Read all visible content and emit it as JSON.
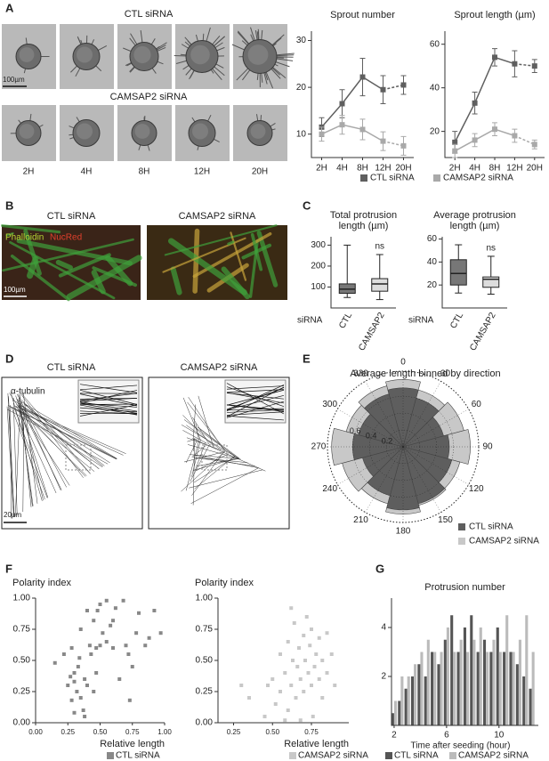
{
  "panel_labels": [
    "A",
    "B",
    "C",
    "D",
    "E",
    "F",
    "G"
  ],
  "panel_a": {
    "row_titles": [
      "CTL siRNA",
      "CAMSAP2 siRNA"
    ],
    "time_labels": [
      "2H",
      "4H",
      "8H",
      "12H",
      "20H"
    ],
    "scale_bar": "100µm"
  },
  "panel_b": {
    "titles": [
      "CTL siRNA",
      "CAMSAP2 siRNA"
    ],
    "stain_labels": [
      "Phalloidin",
      "NucRed"
    ],
    "scale_bar": "100µm"
  },
  "panel_d": {
    "titles": [
      "CTL siRNA",
      "CAMSAP2 siRNA"
    ],
    "stain_label": "α-tubulin",
    "scale_bar": "20µm"
  },
  "chart_data": [
    {
      "type": "line",
      "title": "Sprout number",
      "categories": [
        "2H",
        "4H",
        "8H",
        "12H",
        "20H"
      ],
      "ylim": [
        5,
        32
      ],
      "yticks": [
        10,
        20,
        30
      ],
      "dash_last_segment": true,
      "series": [
        {
          "name": "CTL siRNA",
          "color": "#5f5f5f",
          "values": [
            11.5,
            16.5,
            22.2,
            19.5,
            20.5
          ],
          "errors": [
            2,
            3,
            4,
            3,
            2
          ]
        },
        {
          "name": "CAMSAP2 siRNA",
          "color": "#a9a9a9",
          "values": [
            10,
            12,
            11,
            8.5,
            7.5
          ],
          "errors": [
            1.5,
            2,
            2.2,
            2,
            2
          ]
        }
      ]
    },
    {
      "type": "line",
      "title": "Sprout length (µm)",
      "categories": [
        "2H",
        "4H",
        "8H",
        "12H",
        "20H"
      ],
      "ylim": [
        8,
        66
      ],
      "yticks": [
        20,
        40,
        60
      ],
      "dash_last_segment": true,
      "series": [
        {
          "color": "#5f5f5f",
          "values": [
            15,
            33,
            54,
            51,
            50
          ],
          "errors": [
            5,
            5,
            4,
            6,
            3
          ]
        },
        {
          "color": "#a9a9a9",
          "values": [
            11,
            16,
            21,
            18,
            14
          ],
          "errors": [
            3,
            3,
            3,
            3,
            2
          ]
        }
      ]
    },
    {
      "type": "box",
      "title": [
        "Total protrusion",
        "length (µm)"
      ],
      "x_label": "siRNA",
      "categories": [
        "CTL",
        "CAMSAP2"
      ],
      "colors": [
        "#777777",
        "#dddddd"
      ],
      "min": [
        50,
        40
      ],
      "q1": [
        70,
        80
      ],
      "median": [
        90,
        115
      ],
      "q3": [
        115,
        140
      ],
      "max": [
        300,
        255
      ],
      "annotation": "ns",
      "ylim": [
        0,
        340
      ],
      "yticks": [
        100,
        200,
        300
      ]
    },
    {
      "type": "box",
      "title": [
        "Average protrusion",
        "length (µm)"
      ],
      "x_label": "siRNA",
      "categories": [
        "CTL",
        "CAMSAP2"
      ],
      "colors": [
        "#777777",
        "#dddddd"
      ],
      "min": [
        13,
        12
      ],
      "q1": [
        20,
        18
      ],
      "median": [
        30,
        25
      ],
      "q3": [
        42,
        27
      ],
      "max": [
        55,
        45
      ],
      "annotation": "ns",
      "ylim": [
        0,
        62
      ],
      "yticks": [
        20,
        40,
        60
      ]
    },
    {
      "type": "polar_bar",
      "title": "Average length binned by direction",
      "angles": [
        0,
        30,
        60,
        90,
        120,
        150,
        180,
        210,
        240,
        270,
        300,
        330
      ],
      "rlim": [
        0,
        0.9
      ],
      "rticks": [
        0.2,
        0.4,
        0.6
      ],
      "series": [
        {
          "name": "CTL siRNA",
          "color": "#5e5e5e",
          "values": [
            0.7,
            0.6,
            0.5,
            0.55,
            0.6,
            0.7,
            0.75,
            0.6,
            0.5,
            0.6,
            0.55,
            0.65
          ]
        },
        {
          "name": "CAMSAP2 siRNA",
          "color": "#c8c8c8",
          "values": [
            0.8,
            0.7,
            0.75,
            0.8,
            0.7,
            0.72,
            0.8,
            0.7,
            0.75,
            0.85,
            0.7,
            0.75
          ]
        }
      ]
    },
    {
      "type": "scatter",
      "title": "Polarity index",
      "x_label": "Relative length",
      "xlim": [
        0,
        1
      ],
      "ylim": [
        0,
        1
      ],
      "xticks": [
        {
          "value": 0,
          "label": "0.00"
        },
        {
          "value": 0.25,
          "label": "0.25"
        },
        {
          "value": 0.5,
          "label": "0.50"
        },
        {
          "value": 0.75,
          "label": "0.75"
        },
        {
          "value": 1,
          "label": "1.00"
        }
      ],
      "yticks": [
        {
          "value": 0,
          "label": "0.00"
        },
        {
          "value": 0.25,
          "label": "0.25"
        },
        {
          "value": 0.5,
          "label": "0.50"
        },
        {
          "value": 0.75,
          "label": "0.75"
        },
        {
          "value": 1,
          "label": "1.00"
        }
      ],
      "series": [
        {
          "name": "CTL siRNA",
          "color": "#888888",
          "x": [
            0.15,
            0.22,
            0.25,
            0.27,
            0.28,
            0.28,
            0.3,
            0.3,
            0.32,
            0.33,
            0.34,
            0.35,
            0.35,
            0.37,
            0.38,
            0.38,
            0.4,
            0.4,
            0.42,
            0.43,
            0.45,
            0.45,
            0.47,
            0.48,
            0.5,
            0.5,
            0.52,
            0.55,
            0.55,
            0.58,
            0.6,
            0.62,
            0.65,
            0.68,
            0.7,
            0.72,
            0.73,
            0.75,
            0.78,
            0.8,
            0.85,
            0.88,
            0.92,
            0.97,
            0.47,
            0.3,
            0.6
          ],
          "values": [
            0.48,
            0.55,
            0.3,
            0.37,
            0.6,
            0.18,
            0.4,
            0.08,
            0.25,
            0.45,
            0.52,
            0.2,
            0.75,
            0.1,
            0.35,
            0.05,
            0.3,
            0.9,
            0.62,
            0.55,
            0.25,
            0.82,
            0.6,
            0.9,
            0.62,
            0.95,
            0.72,
            0.98,
            0.65,
            0.78,
            0.6,
            0.92,
            0.35,
            0.98,
            0.62,
            0.55,
            0.18,
            0.45,
            0.72,
            0.88,
            0.62,
            0.68,
            0.9,
            0.72,
            0.4,
            0.33,
            0.82
          ]
        }
      ]
    },
    {
      "type": "scatter",
      "title": "Polarity index",
      "x_label": "Relative length",
      "xlim": [
        0.15,
        0.99
      ],
      "ylim": [
        0,
        1
      ],
      "xticks": [
        {
          "value": 0.25,
          "label": "0.25"
        },
        {
          "value": 0.5,
          "label": "0.50"
        },
        {
          "value": 0.75,
          "label": "0.75"
        }
      ],
      "yticks": [
        {
          "value": 0,
          "label": "0.00"
        },
        {
          "value": 0.25,
          "label": "0.25"
        },
        {
          "value": 0.5,
          "label": "0.50"
        },
        {
          "value": 0.75,
          "label": "0.75"
        },
        {
          "value": 1,
          "label": "1.00"
        }
      ],
      "series": [
        {
          "name": "CAMSAP2 siRNA",
          "color": "#c8c8c8",
          "x": [
            0.3,
            0.35,
            0.45,
            0.5,
            0.52,
            0.55,
            0.55,
            0.58,
            0.6,
            0.6,
            0.62,
            0.63,
            0.64,
            0.65,
            0.66,
            0.67,
            0.68,
            0.68,
            0.7,
            0.7,
            0.71,
            0.72,
            0.73,
            0.74,
            0.75,
            0.75,
            0.76,
            0.77,
            0.78,
            0.8,
            0.8,
            0.82,
            0.82,
            0.85,
            0.85,
            0.88,
            0.9,
            0.62,
            0.58,
            0.47
          ],
          "values": [
            0.3,
            0.2,
            0.05,
            0.35,
            0.15,
            0.25,
            0.55,
            0.4,
            0.1,
            0.65,
            0.3,
            0.5,
            0.8,
            0.2,
            0.45,
            0.6,
            0.02,
            0.35,
            0.7,
            0.25,
            0.5,
            0.85,
            0.4,
            0.62,
            0.3,
            0.75,
            0.05,
            0.45,
            0.55,
            0.35,
            0.68,
            0.2,
            0.5,
            0.72,
            0.4,
            0.55,
            0.3,
            0.92,
            0.02,
            0.3
          ]
        }
      ]
    },
    {
      "type": "histogram_bar",
      "title": "Protrusion number",
      "x_label": "Time after seeding (hour)",
      "xlim": [
        1.8,
        13
      ],
      "ylim": [
        0,
        5.2
      ],
      "xticks": [
        2,
        6,
        10
      ],
      "yticks": [
        2,
        4
      ],
      "x": [
        2,
        2.5,
        3,
        3.5,
        4,
        4.5,
        5,
        5.5,
        6,
        6.5,
        7,
        7.5,
        8,
        8.5,
        9,
        9.5,
        10,
        10.5,
        11,
        11.5,
        12,
        12.5
      ],
      "series": [
        {
          "name": "CTL siRNA",
          "color": "#555555",
          "values": [
            0.5,
            1,
            1.5,
            2,
            2.5,
            2,
            3,
            2.5,
            3.5,
            4.5,
            3,
            4,
            4.5,
            3,
            3.5,
            3,
            4,
            3,
            3,
            2.5,
            2,
            1.5
          ]
        },
        {
          "name": "CAMSAP2 siRNA",
          "color": "#bbbbbb",
          "values": [
            1,
            2,
            2,
            2.5,
            3,
            3.5,
            3,
            3,
            4,
            3,
            3.5,
            3,
            3.5,
            4,
            3,
            3.5,
            3,
            4.5,
            3,
            3.5,
            4.5,
            3
          ]
        }
      ]
    }
  ]
}
